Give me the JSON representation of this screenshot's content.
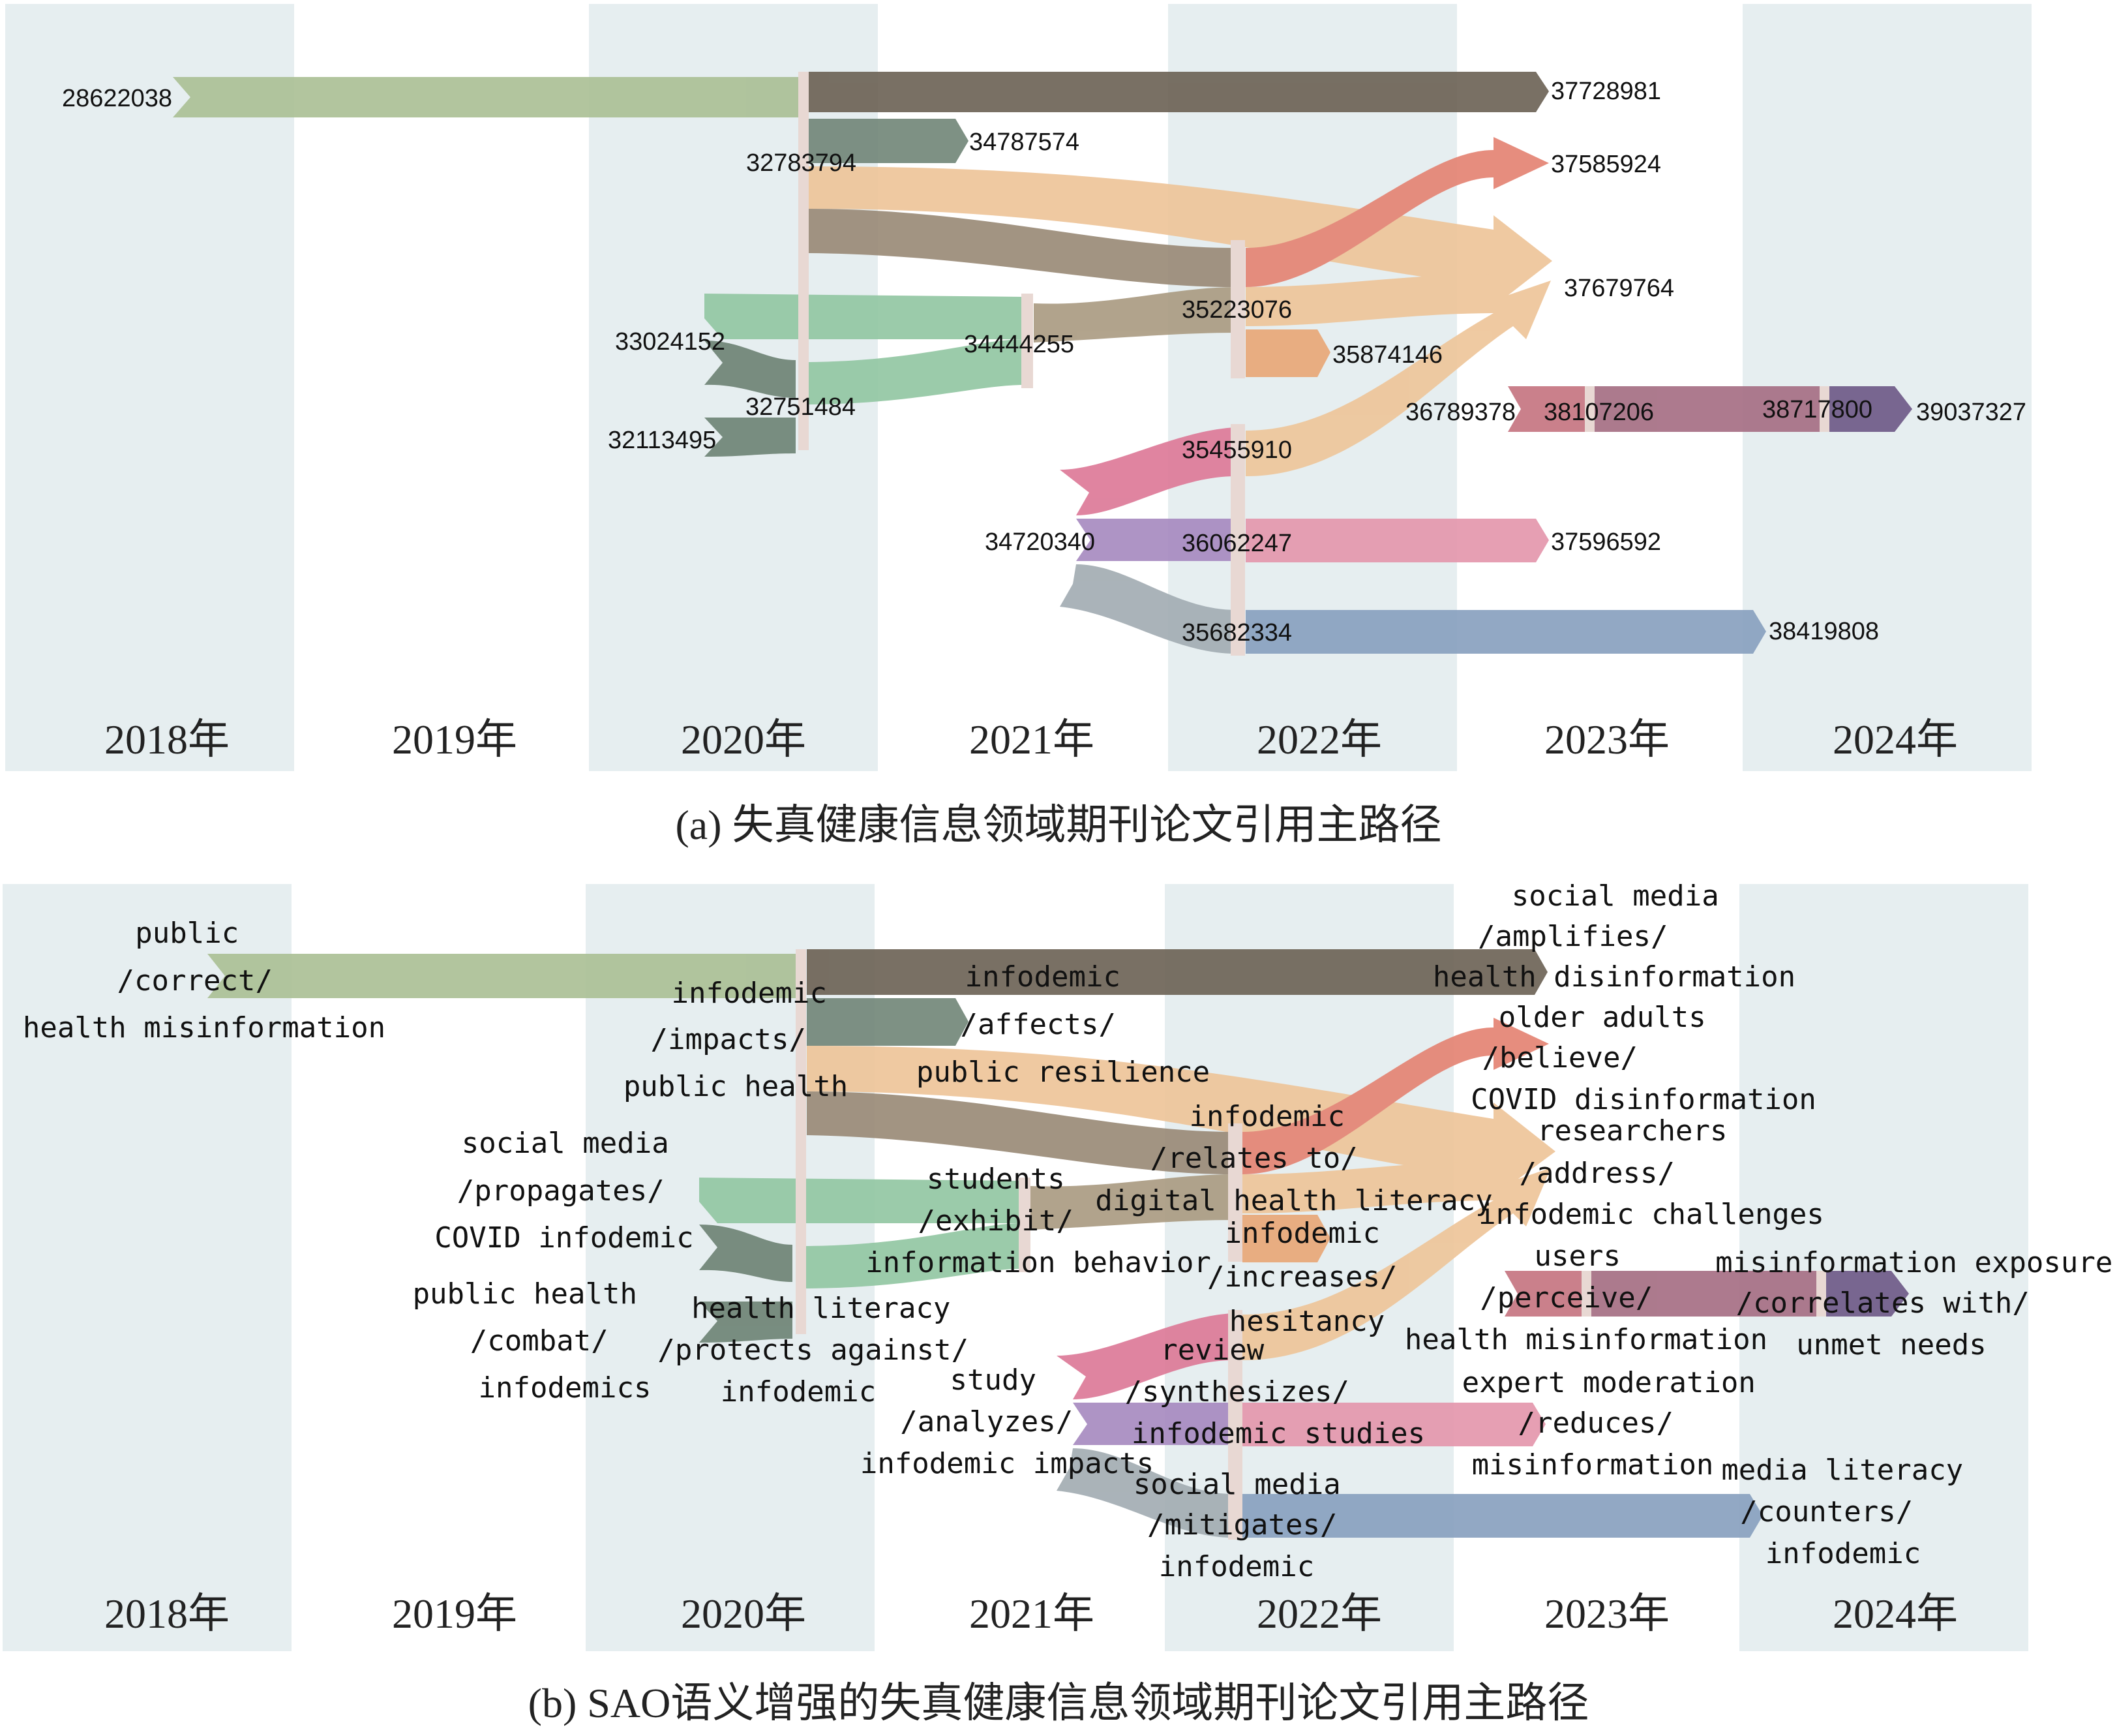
{
  "panel_a": {
    "caption": "(a) 失真健康信息领域期刊论文引用主路径",
    "years": [
      "2018年",
      "2019年",
      "2020年",
      "2021年",
      "2022年",
      "2023年",
      "2024年"
    ],
    "nodes": {
      "n28622038": "28622038",
      "n32783794": "32783794",
      "n37728981": "37728981",
      "n34787574": "34787574",
      "n37585924": "37585924",
      "n37679764": "37679764",
      "n35223076": "35223076",
      "n33024152": "33024152",
      "n34444255": "34444255",
      "n35874146": "35874146",
      "n32751484": "32751484",
      "n32113495": "32113495",
      "n36789378": "36789378",
      "n38107206": "38107206",
      "n38717800": "38717800",
      "n39037327": "39037327",
      "n35455910": "35455910",
      "n34720340": "34720340",
      "n36062247": "36062247",
      "n37596592": "37596592",
      "n35682334": "35682334",
      "n38419808": "38419808"
    }
  },
  "panel_b": {
    "caption": "(b) SAO语义增强的失真健康信息领域期刊论文引用主路径",
    "years": [
      "2018年",
      "2019年",
      "2020年",
      "2021年",
      "2022年",
      "2023年",
      "2024年"
    ],
    "nodes": {
      "public_correct": [
        "public",
        "/correct/",
        "health misinformation"
      ],
      "infodemic_impacts": [
        "infodemic",
        "/impacts/",
        "public health"
      ],
      "infodemic_affects": [
        "infodemic",
        "/affects/",
        "public resilience"
      ],
      "social_media_amplifies": [
        "social media",
        "/amplifies/",
        "health disinformation"
      ],
      "older_adults": [
        "older adults",
        "/believe/",
        "COVID disinformation"
      ],
      "researchers": [
        "researchers",
        "/address/",
        "infodemic challenges"
      ],
      "infodemic_relates": [
        "infodemic",
        "/relates to/",
        "digital health literacy"
      ],
      "social_media_propagates": [
        "social media",
        "/propagates/",
        "COVID infodemic"
      ],
      "students_exhibit": [
        "students",
        "/exhibit/",
        "information behavior"
      ],
      "infodemic_increases": [
        "infodemic",
        "/increases/",
        "hesitancy"
      ],
      "public_health_combat": [
        "public health",
        "/combat/",
        "infodemics"
      ],
      "health_literacy": [
        "health literacy",
        "/protects against/",
        "infodemic"
      ],
      "users_perceive": [
        "users",
        "/perceive/",
        "health misinformation"
      ],
      "misinfo_exposure": [
        "misinformation exposure",
        "/correlates with/",
        "unmet needs"
      ],
      "review_synth": [
        "review",
        "/synthesizes/",
        "infodemic studies"
      ],
      "study_analyzes": [
        "study",
        "/analyzes/",
        "infodemic impacts"
      ],
      "expert_moderation": [
        "expert moderation",
        "/reduces/",
        "misinformation"
      ],
      "social_media_mitigates": [
        "social media",
        "/mitigates/",
        "infodemic"
      ],
      "media_literacy": [
        "media literacy",
        "/counters/",
        "infodemic"
      ]
    }
  }
}
